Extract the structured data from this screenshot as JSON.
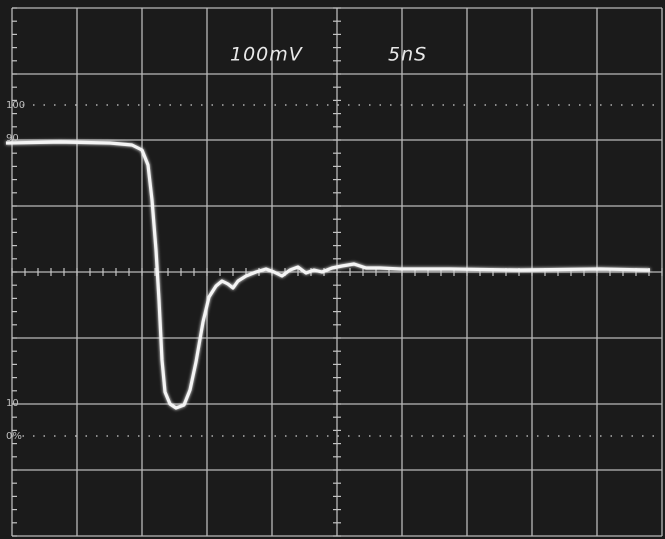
{
  "screen": {
    "volts_per_div": "100mV",
    "time_per_div": "5nS"
  },
  "graticule_labels": {
    "top": "100",
    "upper": "90",
    "lower": "10",
    "bottom": "0%"
  }
}
